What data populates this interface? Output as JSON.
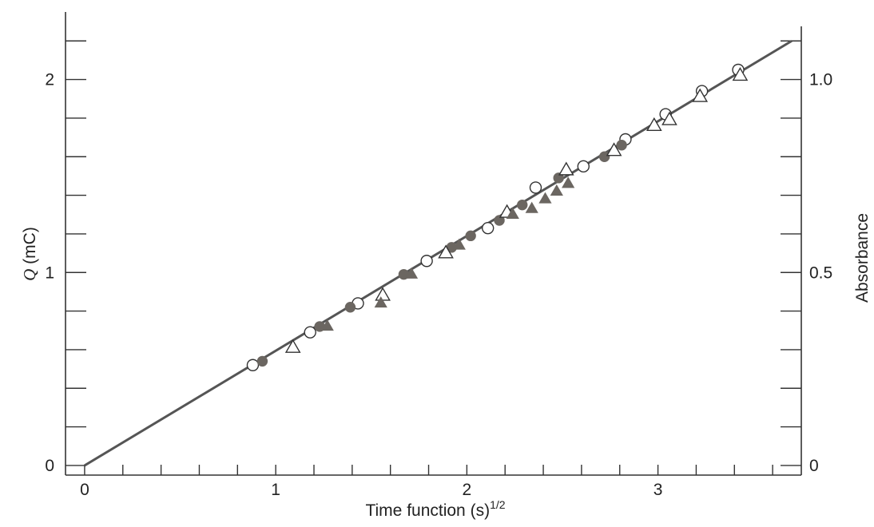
{
  "chart_data": {
    "type": "scatter",
    "title": "",
    "xlabel": "Time function (s)",
    "xlabel_sup": "1/2",
    "ylabel_left": "(mC)",
    "ylabel_left_symbol": "Q",
    "ylabel_right": "Absorbance",
    "xlim": [
      -0.1,
      3.75
    ],
    "ylim_left": [
      -0.05,
      2.35
    ],
    "ylim_right": [
      -0.025,
      1.175
    ],
    "x_ticks": [
      0,
      1,
      2,
      3
    ],
    "x_tick_labels": [
      "0",
      "1",
      "2",
      "3"
    ],
    "x_minor_step": 0.2,
    "y_left_ticks": [
      0,
      1,
      2
    ],
    "y_left_tick_labels": [
      "0",
      "1",
      "2"
    ],
    "y_left_minor_step": 0.2,
    "y_right_ticks": [
      0,
      0.5,
      1.0
    ],
    "y_right_tick_labels": [
      "0",
      "0.5",
      "1.0"
    ],
    "y_right_minor_step": 0.1,
    "grid": false,
    "fit_line": {
      "x": [
        0,
        3.7
      ],
      "y": [
        0,
        2.2
      ]
    },
    "series": [
      {
        "marker": "open-circle",
        "color": "#ffffff",
        "points": [
          [
            0.88,
            0.52
          ],
          [
            1.18,
            0.69
          ],
          [
            1.43,
            0.84
          ],
          [
            1.79,
            1.06
          ],
          [
            2.11,
            1.23
          ],
          [
            2.36,
            1.44
          ],
          [
            2.61,
            1.55
          ],
          [
            2.83,
            1.69
          ],
          [
            3.04,
            1.82
          ],
          [
            3.23,
            1.94
          ],
          [
            3.42,
            2.05
          ]
        ]
      },
      {
        "marker": "filled-circle",
        "color": "#6b6661",
        "points": [
          [
            0.93,
            0.54
          ],
          [
            1.23,
            0.72
          ],
          [
            1.39,
            0.82
          ],
          [
            1.67,
            0.99
          ],
          [
            1.92,
            1.13
          ],
          [
            2.02,
            1.19
          ],
          [
            2.17,
            1.27
          ],
          [
            2.29,
            1.35
          ],
          [
            2.48,
            1.49
          ],
          [
            2.72,
            1.6
          ],
          [
            2.81,
            1.66
          ]
        ]
      },
      {
        "marker": "open-triangle",
        "color": "#ffffff",
        "points": [
          [
            1.09,
            0.61
          ],
          [
            1.56,
            0.88
          ],
          [
            1.89,
            1.1
          ],
          [
            2.21,
            1.31
          ],
          [
            2.52,
            1.53
          ],
          [
            2.77,
            1.63
          ],
          [
            2.98,
            1.76
          ],
          [
            3.06,
            1.79
          ],
          [
            3.22,
            1.91
          ],
          [
            3.43,
            2.02
          ]
        ]
      },
      {
        "marker": "filled-triangle",
        "color": "#6b6661",
        "points": [
          [
            1.27,
            0.72
          ],
          [
            1.55,
            0.84
          ],
          [
            1.71,
            0.99
          ],
          [
            1.96,
            1.14
          ],
          [
            2.24,
            1.3
          ],
          [
            2.34,
            1.33
          ],
          [
            2.41,
            1.38
          ],
          [
            2.47,
            1.42
          ],
          [
            2.53,
            1.46
          ]
        ]
      }
    ]
  }
}
